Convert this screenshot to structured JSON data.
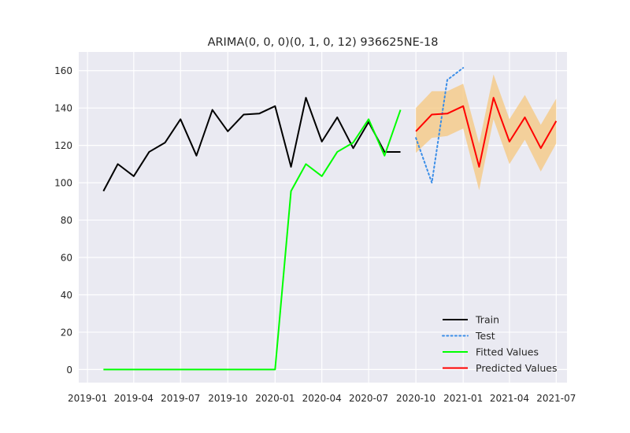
{
  "chart_data": {
    "type": "line",
    "title": "ARIMA(0, 0, 0)(0, 1, 0, 12) 936625NE-18",
    "xlabel": "",
    "ylabel": "",
    "x_axis_type": "date",
    "xlim": [
      "2018-12-15",
      "2021-07-22"
    ],
    "ylim": [
      -7,
      170
    ],
    "grid": true,
    "legend_position": "lower-right",
    "x_ticks": [
      {
        "date": "2019-01-01",
        "label": "2019-01"
      },
      {
        "date": "2019-04-01",
        "label": "2019-04"
      },
      {
        "date": "2019-07-01",
        "label": "2019-07"
      },
      {
        "date": "2019-10-01",
        "label": "2019-10"
      },
      {
        "date": "2020-01-01",
        "label": "2020-01"
      },
      {
        "date": "2020-04-01",
        "label": "2020-04"
      },
      {
        "date": "2020-07-01",
        "label": "2020-07"
      },
      {
        "date": "2020-10-01",
        "label": "2020-10"
      },
      {
        "date": "2021-01-01",
        "label": "2021-01"
      },
      {
        "date": "2021-04-01",
        "label": "2021-04"
      },
      {
        "date": "2021-07-01",
        "label": "2021-07"
      }
    ],
    "y_ticks": [
      0,
      20,
      40,
      60,
      80,
      100,
      120,
      140,
      160
    ],
    "confidence_band": {
      "color": "#f5c77e",
      "x": [
        "2020-10-01",
        "2020-11-01",
        "2020-12-01",
        "2021-01-01",
        "2021-02-01",
        "2021-03-01",
        "2021-04-01",
        "2021-05-01",
        "2021-06-01",
        "2021-07-01"
      ],
      "lower": [
        116,
        124,
        125,
        129,
        96,
        134,
        110,
        123,
        106,
        121
      ],
      "upper": [
        140,
        149,
        149,
        153,
        121,
        158,
        134,
        147,
        131,
        145
      ]
    },
    "series": [
      {
        "name": "Train",
        "color": "#000000",
        "style": "solid",
        "x": [
          "2019-02-01",
          "2019-03-01",
          "2019-04-01",
          "2019-05-01",
          "2019-06-01",
          "2019-07-01",
          "2019-08-01",
          "2019-09-01",
          "2019-10-01",
          "2019-11-01",
          "2019-12-01",
          "2020-01-01",
          "2020-02-01",
          "2020-03-01",
          "2020-04-01",
          "2020-05-01",
          "2020-06-01",
          "2020-07-01",
          "2020-08-01",
          "2020-09-01"
        ],
        "values": [
          95.5,
          110,
          103.5,
          116.5,
          121.5,
          134,
          114.5,
          139,
          127.5,
          136.5,
          137,
          141,
          108.5,
          145.5,
          122,
          135,
          118.5,
          132.5,
          116.5,
          116.5
        ]
      },
      {
        "name": "Test",
        "color": "#3b8ee8",
        "style": "dotted",
        "x": [
          "2020-10-01",
          "2020-11-01",
          "2020-12-01",
          "2021-01-01"
        ],
        "values": [
          124,
          100,
          155,
          161.5
        ]
      },
      {
        "name": "Fitted Values",
        "color": "#00ff00",
        "style": "solid",
        "x": [
          "2019-02-01",
          "2019-03-01",
          "2019-04-01",
          "2019-05-01",
          "2019-06-01",
          "2019-07-01",
          "2019-08-01",
          "2019-09-01",
          "2019-10-01",
          "2019-11-01",
          "2019-12-01",
          "2020-01-01",
          "2020-02-01",
          "2020-03-01",
          "2020-04-01",
          "2020-05-01",
          "2020-06-01",
          "2020-07-01",
          "2020-08-01",
          "2020-09-01"
        ],
        "values": [
          0,
          0,
          0,
          0,
          0,
          0,
          0,
          0,
          0,
          0,
          0,
          0,
          95.5,
          110,
          103.5,
          116.5,
          121.5,
          134,
          114.5,
          139
        ]
      },
      {
        "name": "Predicted Values",
        "color": "#ff0000",
        "style": "solid",
        "x": [
          "2020-10-01",
          "2020-11-01",
          "2020-12-01",
          "2021-01-01",
          "2021-02-01",
          "2021-03-01",
          "2021-04-01",
          "2021-05-01",
          "2021-06-01",
          "2021-07-01"
        ],
        "values": [
          127.5,
          136.5,
          137,
          141,
          108.5,
          145.5,
          122,
          135,
          118.5,
          133
        ]
      }
    ]
  }
}
